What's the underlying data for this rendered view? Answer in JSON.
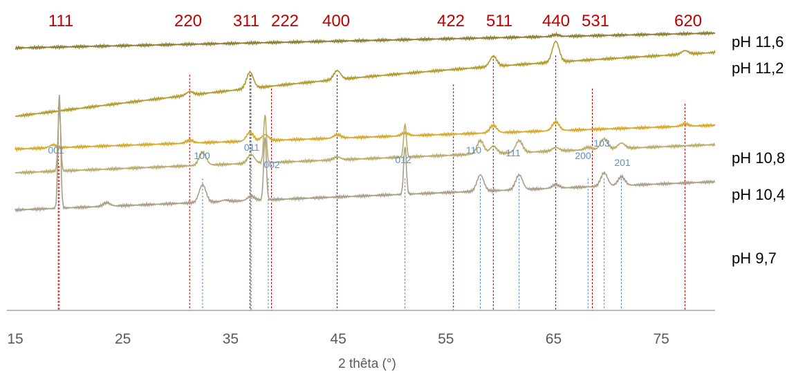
{
  "chart_data": {
    "type": "line",
    "xlabel": "2 thêta (°)",
    "xlim": [
      15,
      80
    ],
    "x_ticks": [
      15,
      25,
      35,
      45,
      55,
      65,
      75
    ],
    "x_tick_labels": [
      "15",
      "25",
      "35",
      "45",
      "55",
      "65",
      "75"
    ],
    "grid": false,
    "y_axis_shown": false,
    "colors": {
      "red_reference": "#c00000",
      "blue_reference": "#5b8fc9",
      "grey_reference": "#595959"
    },
    "red_reference_peaks": [
      {
        "label": "111",
        "x": 19.0
      },
      {
        "label": "220",
        "x": 31.2
      },
      {
        "label": "311",
        "x": 36.8
      },
      {
        "label": "222",
        "x": 38.8
      },
      {
        "label": "400",
        "x": 44.9
      },
      {
        "label": "422",
        "x": 55.7
      },
      {
        "label": "511",
        "x": 59.4
      },
      {
        "label": "440",
        "x": 65.2
      },
      {
        "label": "531",
        "x": 68.6
      },
      {
        "label": "620",
        "x": 77.2
      }
    ],
    "blue_reference_peaks": [
      {
        "label": "001",
        "x": 19.1
      },
      {
        "label": "100",
        "x": 32.4
      },
      {
        "label": "011",
        "x": 36.9
      },
      {
        "label": "002",
        "x": 38.5
      },
      {
        "label": "012",
        "x": 51.2
      },
      {
        "label": "110",
        "x": 58.2
      },
      {
        "label": "111",
        "x": 61.8
      },
      {
        "label": "200",
        "x": 68.2
      },
      {
        "label": "103",
        "x": 69.7
      },
      {
        "label": "201",
        "x": 71.3
      }
    ],
    "series": [
      {
        "name": "pH 11,6",
        "color": "#8a7a2e",
        "baseline": [
          [
            15,
            3.2
          ],
          [
            80,
            3.7
          ]
        ],
        "peaks": [
          [
            65.2,
            0.06
          ]
        ]
      },
      {
        "name": "pH 11,2",
        "color": "#b09a2c",
        "baseline": [
          [
            15,
            0.9
          ],
          [
            80,
            3.05
          ]
        ],
        "peaks": [
          [
            31.2,
            0.12
          ],
          [
            36.8,
            0.55
          ],
          [
            44.9,
            0.3
          ],
          [
            59.4,
            0.35
          ],
          [
            65.2,
            0.7
          ],
          [
            77.2,
            0.12
          ]
        ]
      },
      {
        "name": "pH 10,8",
        "color": "#d4a82a",
        "baseline": [
          [
            15,
            -0.2
          ],
          [
            80,
            0.6
          ]
        ],
        "peaks": [
          [
            18.5,
            0.1
          ],
          [
            31.2,
            0.1
          ],
          [
            36.8,
            0.3
          ],
          [
            38.2,
            0.2
          ],
          [
            44.9,
            0.12
          ],
          [
            51.2,
            0.1
          ],
          [
            59.4,
            0.25
          ],
          [
            65.2,
            0.3
          ],
          [
            77.2,
            0.08
          ]
        ]
      },
      {
        "name": "pH 10,4",
        "color": "#b8aa6a",
        "baseline": [
          [
            15,
            -1.0
          ],
          [
            80,
            -0.05
          ]
        ],
        "peaks": [
          [
            19.1,
            2.1
          ],
          [
            32.4,
            0.45
          ],
          [
            36.9,
            0.3
          ],
          [
            38.2,
            1.6
          ],
          [
            44.9,
            0.1
          ],
          [
            51.2,
            1.1
          ],
          [
            58.2,
            0.45
          ],
          [
            59.4,
            0.25
          ],
          [
            61.8,
            0.4
          ],
          [
            65.2,
            0.12
          ],
          [
            68.2,
            0.08
          ],
          [
            69.7,
            0.35
          ],
          [
            71.3,
            0.18
          ]
        ]
      },
      {
        "name": "pH 9,7",
        "color": "#a89e86",
        "baseline": [
          [
            15,
            -2.25
          ],
          [
            80,
            -1.3
          ]
        ],
        "peaks": [
          [
            19.1,
            3.8
          ],
          [
            23.5,
            0.12
          ],
          [
            32.4,
            0.6
          ],
          [
            34.5,
            0.05
          ],
          [
            36.9,
            0.15
          ],
          [
            38.2,
            2.1
          ],
          [
            51.2,
            1.6
          ],
          [
            58.2,
            0.55
          ],
          [
            61.8,
            0.5
          ],
          [
            65.2,
            0.12
          ],
          [
            69.7,
            0.45
          ],
          [
            71.3,
            0.3
          ]
        ]
      }
    ]
  }
}
